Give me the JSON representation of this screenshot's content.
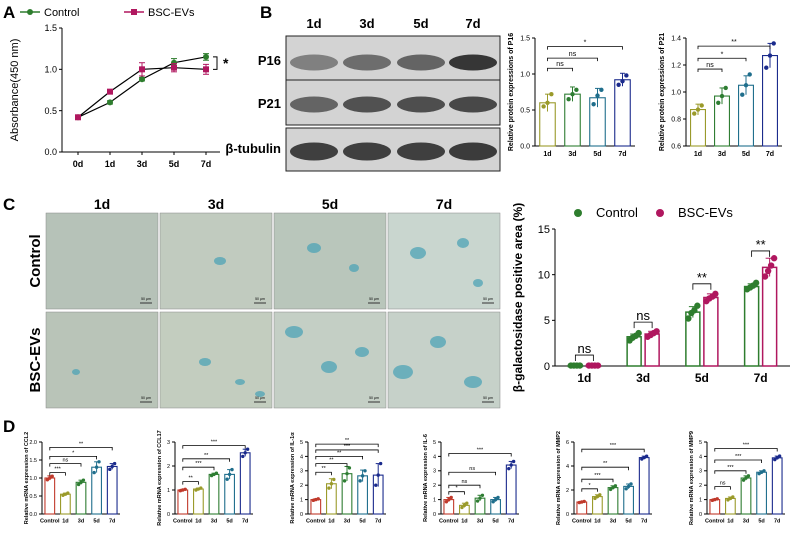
{
  "panels": {
    "A": {
      "letter": "A"
    },
    "B": {
      "letter": "B",
      "days": [
        "1d",
        "3d",
        "5d",
        "7d"
      ],
      "bands": [
        "P16",
        "P21",
        "β-tubulin"
      ]
    },
    "C": {
      "letter": "C",
      "days": [
        "1d",
        "3d",
        "5d",
        "7d"
      ],
      "rows": [
        "Control",
        "BSC-EVs"
      ],
      "scale_label": "50 μm"
    },
    "D": {
      "letter": "D"
    }
  },
  "colors": {
    "control": "#2e7d2e",
    "bsc": "#b0175f",
    "olive": "#9a9a2a",
    "green": "#2e7d32",
    "teal": "#1f6e8c",
    "navy": "#1a2a8c",
    "tissue": "#b3bfb6",
    "stain": "#4ea3b5"
  },
  "chart_data": [
    {
      "type": "line",
      "id": "A",
      "x": [
        "0d",
        "1d",
        "3d",
        "5d",
        "7d"
      ],
      "ylabel": "Absorbance(450 nm)",
      "ylim": [
        0,
        1.5
      ],
      "yticks": [
        "0.0",
        "0.5",
        "1.0",
        "1.5"
      ],
      "legend": "top",
      "series": [
        {
          "name": "Control",
          "values": [
            0.42,
            0.6,
            0.88,
            1.08,
            1.15
          ],
          "err": [
            0.01,
            0.02,
            0.02,
            0.05,
            0.04
          ]
        },
        {
          "name": "BSC-EVs",
          "values": [
            0.42,
            0.73,
            1.0,
            1.02,
            1.0
          ],
          "err": [
            0.01,
            0.02,
            0.08,
            0.05,
            0.06
          ]
        }
      ],
      "annotations": [
        {
          "label": "*",
          "between": [
            3,
            4
          ]
        }
      ]
    },
    {
      "type": "bar",
      "id": "B-P16",
      "categories": [
        "1d",
        "3d",
        "5d",
        "7d"
      ],
      "values": [
        0.6,
        0.72,
        0.67,
        0.92
      ],
      "err": [
        0.12,
        0.1,
        0.13,
        0.09
      ],
      "points": [
        [
          0.55,
          0.6,
          0.72
        ],
        [
          0.65,
          0.72,
          0.78
        ],
        [
          0.58,
          0.7,
          0.78
        ],
        [
          0.85,
          0.9,
          0.98
        ]
      ],
      "ylabel": "Relative protein expressions of P16",
      "ylim": [
        0,
        1.5
      ],
      "yticks": [
        "0.0",
        "0.5",
        "1.0",
        "1.5"
      ],
      "brackets": [
        {
          "from": 0,
          "to": 1,
          "label": "ns",
          "y": 1.08
        },
        {
          "from": 0,
          "to": 2,
          "label": "ns",
          "y": 1.22
        },
        {
          "from": 0,
          "to": 3,
          "label": "*",
          "y": 1.38
        }
      ]
    },
    {
      "type": "bar",
      "id": "B-P21",
      "categories": [
        "1d",
        "3d",
        "5d",
        "7d"
      ],
      "values": [
        0.87,
        0.97,
        1.05,
        1.27
      ],
      "err": [
        0.04,
        0.06,
        0.07,
        0.09
      ],
      "points": [
        [
          0.84,
          0.87,
          0.9
        ],
        [
          0.92,
          0.97,
          1.03
        ],
        [
          0.98,
          1.05,
          1.13
        ],
        [
          1.18,
          1.27,
          1.36
        ]
      ],
      "ylabel": "Relative protein expressions of P21",
      "ylim": [
        0.6,
        1.4
      ],
      "yticks": [
        "0.6",
        "0.8",
        "1.0",
        "1.2",
        "1.4"
      ],
      "brackets": [
        {
          "from": 0,
          "to": 1,
          "label": "ns",
          "y": 1.17
        },
        {
          "from": 0,
          "to": 2,
          "label": "*",
          "y": 1.25
        },
        {
          "from": 0,
          "to": 3,
          "label": "**",
          "y": 1.34
        }
      ]
    },
    {
      "type": "bar",
      "id": "C-bar",
      "categories": [
        "1d",
        "3d",
        "5d",
        "7d"
      ],
      "ylabel": "β-galactosidase positive area (%)",
      "ylim": [
        0,
        15
      ],
      "yticks": [
        "0",
        "5",
        "10",
        "15"
      ],
      "legend": "top",
      "series": [
        {
          "name": "Control",
          "values": [
            0.05,
            3.2,
            5.9,
            8.7
          ],
          "err": [
            0.02,
            0.3,
            0.6,
            0.3
          ],
          "points": [
            [
              0.05,
              0.05,
              0.05,
              0.05
            ],
            [
              2.8,
              3.1,
              3.3,
              3.6
            ],
            [
              5.2,
              5.8,
              6.1,
              6.6
            ],
            [
              8.4,
              8.6,
              8.8,
              9.1
            ]
          ]
        },
        {
          "name": "BSC-EVs",
          "values": [
            0.05,
            3.5,
            7.5,
            10.8
          ],
          "err": [
            0.02,
            0.3,
            0.4,
            1.0
          ],
          "points": [
            [
              0.05,
              0.05,
              0.05,
              0.05
            ],
            [
              3.2,
              3.4,
              3.6,
              3.8
            ],
            [
              7.1,
              7.4,
              7.6,
              7.9
            ],
            [
              9.8,
              10.4,
              11.0,
              11.8
            ]
          ]
        }
      ],
      "brackets": [
        {
          "cat": 0,
          "label": "ns",
          "y": 1.2
        },
        {
          "cat": 1,
          "label": "ns",
          "y": 4.8
        },
        {
          "cat": 2,
          "label": "**",
          "y": 9.0
        },
        {
          "cat": 3,
          "label": "**",
          "y": 12.6
        }
      ]
    },
    {
      "type": "bar",
      "id": "D-CCL2",
      "categories": [
        "Control",
        "1d",
        "3d",
        "5d",
        "7d"
      ],
      "values": [
        1.0,
        0.55,
        0.88,
        1.3,
        1.32
      ],
      "err": [
        0.06,
        0.03,
        0.06,
        0.15,
        0.08
      ],
      "points": [
        [
          0.95,
          1.0,
          1.05
        ],
        [
          0.52,
          0.55,
          0.58
        ],
        [
          0.82,
          0.88,
          0.94
        ],
        [
          1.15,
          1.3,
          1.45
        ],
        [
          1.24,
          1.32,
          1.4
        ]
      ],
      "ylabel": "Relative mRNA expression of CCL2",
      "ylim": [
        0,
        2.0
      ],
      "yticks": [
        "0.0",
        "0.5",
        "1.0",
        "1.5",
        "2.0"
      ],
      "brackets": [
        {
          "from": 0,
          "to": 1,
          "label": "***",
          "y": 1.15
        },
        {
          "from": 0,
          "to": 2,
          "label": "ns",
          "y": 1.4
        },
        {
          "from": 0,
          "to": 3,
          "label": "*",
          "y": 1.6
        },
        {
          "from": 0,
          "to": 4,
          "label": "**",
          "y": 1.85
        }
      ]
    },
    {
      "type": "bar",
      "id": "D-CCL17",
      "categories": [
        "Control",
        "1d",
        "3d",
        "5d",
        "7d"
      ],
      "values": [
        1.0,
        1.04,
        1.65,
        1.65,
        2.55
      ],
      "err": [
        0.03,
        0.04,
        0.05,
        0.2,
        0.15
      ],
      "points": [
        [
          0.97,
          1.0,
          1.03
        ],
        [
          1.0,
          1.04,
          1.08
        ],
        [
          1.6,
          1.65,
          1.7
        ],
        [
          1.45,
          1.65,
          1.85
        ],
        [
          2.4,
          2.55,
          2.7
        ]
      ],
      "ylabel": "Relative mRNA expression of CCL17",
      "ylim": [
        0,
        3
      ],
      "yticks": [
        "0",
        "1",
        "2",
        "3"
      ],
      "brackets": [
        {
          "from": 0,
          "to": 1,
          "label": "**",
          "y": 1.35
        },
        {
          "from": 0,
          "to": 2,
          "label": "***",
          "y": 1.95
        },
        {
          "from": 0,
          "to": 3,
          "label": "**",
          "y": 2.3
        },
        {
          "from": 0,
          "to": 4,
          "label": "***",
          "y": 2.85
        }
      ]
    },
    {
      "type": "bar",
      "id": "D-IL1a",
      "categories": [
        "Control",
        "1d",
        "3d",
        "5d",
        "7d"
      ],
      "values": [
        1.0,
        2.1,
        2.8,
        2.65,
        2.7
      ],
      "err": [
        0.05,
        0.35,
        0.5,
        0.4,
        0.8
      ],
      "points": [
        [
          0.95,
          1.0,
          1.05
        ],
        [
          1.8,
          2.1,
          2.4
        ],
        [
          2.3,
          2.8,
          3.2
        ],
        [
          2.3,
          2.65,
          3.0
        ],
        [
          2.0,
          2.7,
          3.5
        ]
      ],
      "ylabel": "Relative mRNA expression of IL-1α",
      "ylim": [
        0,
        5
      ],
      "yticks": [
        "0",
        "1",
        "2",
        "3",
        "4",
        "5"
      ],
      "brackets": [
        {
          "from": 0,
          "to": 1,
          "label": "**",
          "y": 2.9
        },
        {
          "from": 0,
          "to": 2,
          "label": "**",
          "y": 3.5
        },
        {
          "from": 0,
          "to": 3,
          "label": "**",
          "y": 4.0
        },
        {
          "from": 0,
          "to": 4,
          "label": "***",
          "y": 4.45
        },
        {
          "from": 0,
          "to": 4,
          "label": "**",
          "y": 4.85
        }
      ]
    },
    {
      "type": "bar",
      "id": "D-IL6",
      "categories": [
        "Control",
        "1d",
        "3d",
        "5d",
        "7d"
      ],
      "values": [
        1.0,
        0.6,
        1.1,
        1.0,
        3.4
      ],
      "err": [
        0.15,
        0.15,
        0.2,
        0.15,
        0.25
      ],
      "points": [
        [
          0.85,
          1.0,
          1.15
        ],
        [
          0.45,
          0.6,
          0.75
        ],
        [
          0.9,
          1.1,
          1.3
        ],
        [
          0.85,
          1.0,
          1.15
        ],
        [
          3.15,
          3.4,
          3.65
        ]
      ],
      "ylabel": "Relative mRNA expression of IL-6",
      "ylim": [
        0,
        5
      ],
      "yticks": [
        "0",
        "1",
        "2",
        "3",
        "4",
        "5"
      ],
      "brackets": [
        {
          "from": 0,
          "to": 1,
          "label": "*",
          "y": 1.55
        },
        {
          "from": 0,
          "to": 2,
          "label": "ns",
          "y": 2.0
        },
        {
          "from": 0,
          "to": 3,
          "label": "ns",
          "y": 2.9
        },
        {
          "from": 0,
          "to": 4,
          "label": "***",
          "y": 4.2
        }
      ]
    },
    {
      "type": "bar",
      "id": "D-MMP2",
      "categories": [
        "Control",
        "1d",
        "3d",
        "5d",
        "7d"
      ],
      "values": [
        1.0,
        1.45,
        2.2,
        2.3,
        4.7
      ],
      "err": [
        0.05,
        0.15,
        0.15,
        0.2,
        0.12
      ],
      "points": [
        [
          0.95,
          1.0,
          1.05
        ],
        [
          1.3,
          1.45,
          1.6
        ],
        [
          2.05,
          2.2,
          2.35
        ],
        [
          2.1,
          2.3,
          2.5
        ],
        [
          4.58,
          4.7,
          4.82
        ]
      ],
      "ylabel": "Relative mRNA expression of MMP2",
      "ylim": [
        0,
        6
      ],
      "yticks": [
        "0",
        "2",
        "4",
        "6"
      ],
      "brackets": [
        {
          "from": 0,
          "to": 1,
          "label": "*",
          "y": 2.1
        },
        {
          "from": 0,
          "to": 2,
          "label": "***",
          "y": 2.9
        },
        {
          "from": 0,
          "to": 3,
          "label": "**",
          "y": 3.9
        },
        {
          "from": 0,
          "to": 4,
          "label": "***",
          "y": 5.4
        }
      ]
    },
    {
      "type": "bar",
      "id": "D-MMP9",
      "categories": [
        "Control",
        "1d",
        "3d",
        "5d",
        "7d"
      ],
      "values": [
        1.0,
        1.08,
        2.5,
        2.9,
        3.9
      ],
      "err": [
        0.05,
        0.1,
        0.15,
        0.1,
        0.12
      ],
      "points": [
        [
          0.95,
          1.0,
          1.05
        ],
        [
          0.98,
          1.08,
          1.18
        ],
        [
          2.35,
          2.5,
          2.65
        ],
        [
          2.8,
          2.9,
          3.0
        ],
        [
          3.78,
          3.9,
          4.02
        ]
      ],
      "ylabel": "Relative mRNA expression of MMP9",
      "ylim": [
        0,
        5
      ],
      "yticks": [
        "0",
        "1",
        "2",
        "3",
        "4",
        "5"
      ],
      "brackets": [
        {
          "from": 0,
          "to": 1,
          "label": "ns",
          "y": 1.9
        },
        {
          "from": 0,
          "to": 2,
          "label": "***",
          "y": 3.0
        },
        {
          "from": 0,
          "to": 3,
          "label": "***",
          "y": 3.75
        },
        {
          "from": 0,
          "to": 4,
          "label": "***",
          "y": 4.55
        }
      ]
    }
  ]
}
